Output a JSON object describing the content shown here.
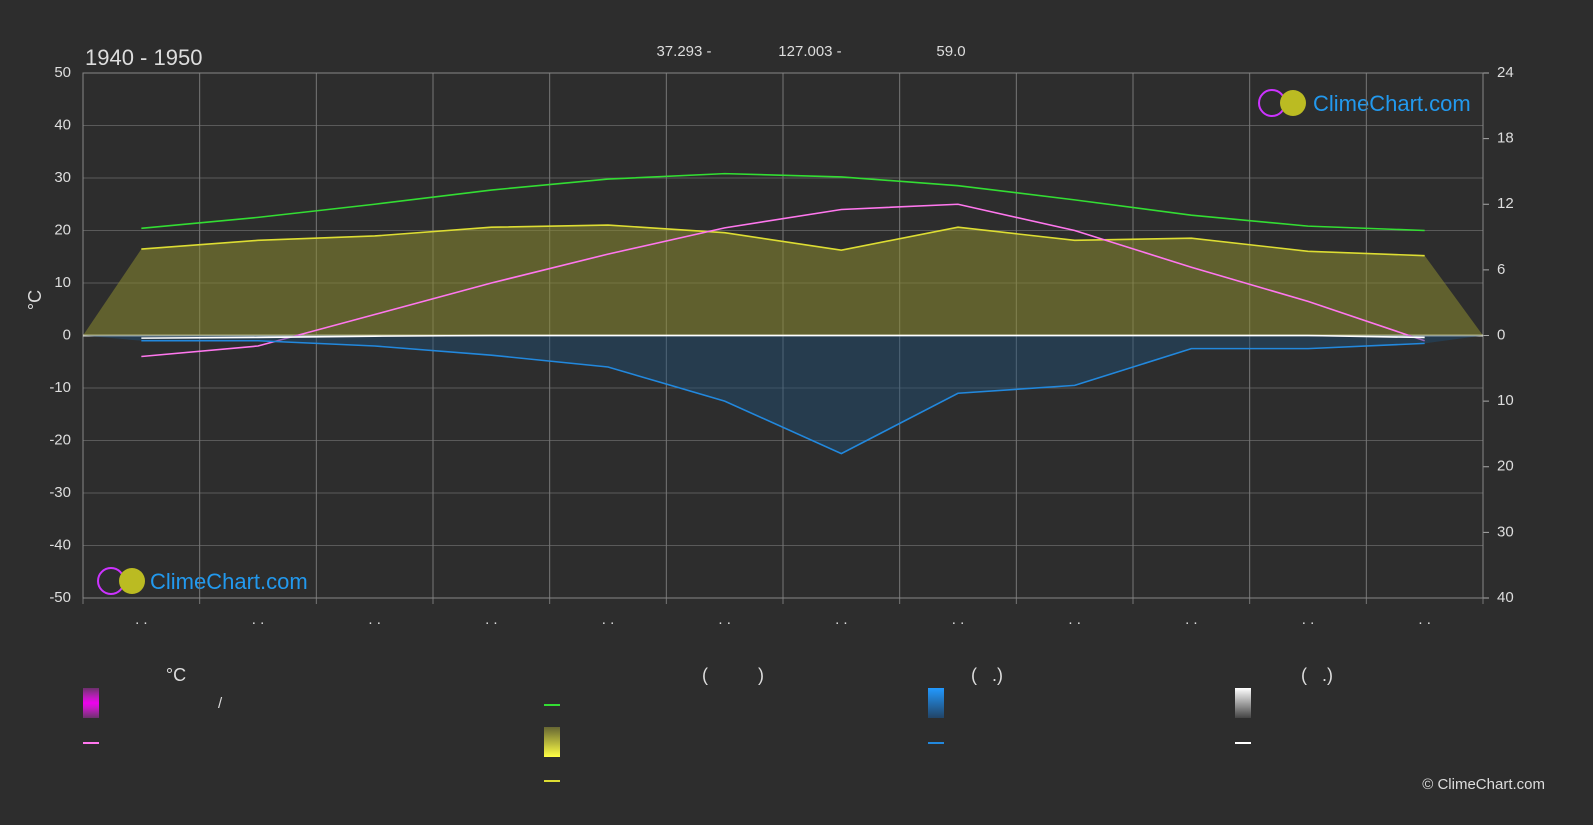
{
  "chart_data": {
    "type": "line",
    "title": "1940 - 1950",
    "subtitle_parts": [
      "37.293 -",
      "127.003 -",
      "59.0"
    ],
    "ylabel": "°C",
    "categories": [
      ". .",
      ". .",
      ". .",
      ". .",
      ". .",
      ". .",
      ". .",
      ". .",
      ". .",
      ". .",
      ". .",
      ". ."
    ],
    "ylim": [
      -50,
      50
    ],
    "yticks": [
      50,
      40,
      30,
      20,
      10,
      0,
      -10,
      -20,
      -30,
      -40,
      -50
    ],
    "y2lim": [
      0,
      24
    ],
    "y2ticks": [
      24,
      18,
      12,
      6,
      0
    ],
    "y3lim": [
      0,
      40
    ],
    "y3ticks": [
      10,
      20,
      30,
      40
    ],
    "grid": true,
    "series": [
      {
        "color": "#33dd33",
        "axis": "y2",
        "values": [
          9.8,
          10.8,
          12.0,
          13.3,
          14.3,
          14.8,
          14.5,
          13.7,
          12.4,
          11.0,
          10.0,
          9.6
        ]
      },
      {
        "color": "#dddd33",
        "axis": "y2",
        "values": [
          7.9,
          8.7,
          9.1,
          9.9,
          10.1,
          9.4,
          7.8,
          9.9,
          8.7,
          8.9,
          7.7,
          7.3
        ]
      },
      {
        "color": "#ff77ee",
        "axis": "y",
        "values": [
          -4,
          -2,
          4,
          10,
          15.5,
          20.5,
          24,
          25,
          20,
          13,
          6.5,
          -1
        ]
      },
      {
        "color": "#2288dd",
        "axis": "y3",
        "values": [
          0.8,
          0.8,
          1.6,
          3,
          4.8,
          10,
          18,
          8.8,
          7.6,
          2,
          2,
          1.2
        ]
      },
      {
        "color": "#ffffff",
        "axis": "y3",
        "values": [
          0.4,
          0.3,
          0.1,
          0,
          0,
          0,
          0,
          0,
          0,
          0,
          0,
          0.3
        ]
      }
    ],
    "legend_headers": [
      "°C",
      "(          )",
      "(   .)",
      "(   .)"
    ],
    "legend_slash": "/",
    "logo": "ClimeChart.com",
    "copyright": "© ClimeChart.com"
  }
}
